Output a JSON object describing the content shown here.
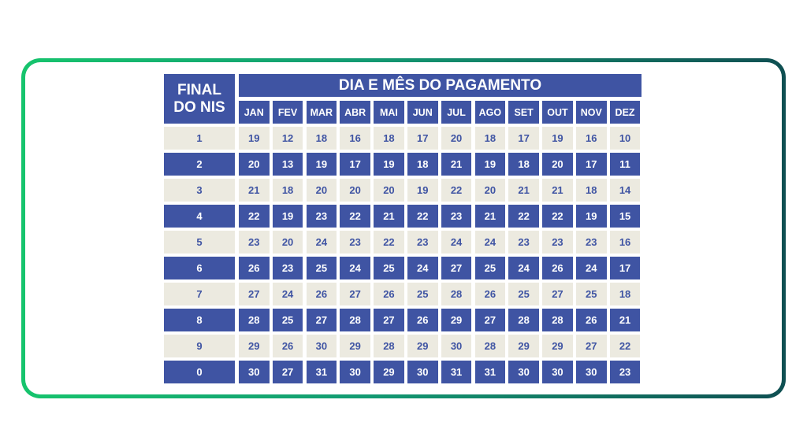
{
  "header": {
    "final_line1": "FINAL",
    "final_line2": "DO NIS",
    "title": "DIA E MÊS DO PAGAMENTO"
  },
  "months": [
    "JAN",
    "FEV",
    "MAR",
    "ABR",
    "MAI",
    "JUN",
    "JUL",
    "AGO",
    "SET",
    "OUT",
    "NOV",
    "DEZ"
  ],
  "rows": [
    {
      "nis": "1",
      "days": [
        "19",
        "12",
        "18",
        "16",
        "18",
        "17",
        "20",
        "18",
        "17",
        "19",
        "16",
        "10"
      ]
    },
    {
      "nis": "2",
      "days": [
        "20",
        "13",
        "19",
        "17",
        "19",
        "18",
        "21",
        "19",
        "18",
        "20",
        "17",
        "11"
      ]
    },
    {
      "nis": "3",
      "days": [
        "21",
        "18",
        "20",
        "20",
        "20",
        "19",
        "22",
        "20",
        "21",
        "21",
        "18",
        "14"
      ]
    },
    {
      "nis": "4",
      "days": [
        "22",
        "19",
        "23",
        "22",
        "21",
        "22",
        "23",
        "21",
        "22",
        "22",
        "19",
        "15"
      ]
    },
    {
      "nis": "5",
      "days": [
        "23",
        "20",
        "24",
        "23",
        "22",
        "23",
        "24",
        "24",
        "23",
        "23",
        "23",
        "16"
      ]
    },
    {
      "nis": "6",
      "days": [
        "26",
        "23",
        "25",
        "24",
        "25",
        "24",
        "27",
        "25",
        "24",
        "26",
        "24",
        "17"
      ]
    },
    {
      "nis": "7",
      "days": [
        "27",
        "24",
        "26",
        "27",
        "26",
        "25",
        "28",
        "26",
        "25",
        "27",
        "25",
        "18"
      ]
    },
    {
      "nis": "8",
      "days": [
        "28",
        "25",
        "27",
        "28",
        "27",
        "26",
        "29",
        "27",
        "28",
        "28",
        "26",
        "21"
      ]
    },
    {
      "nis": "9",
      "days": [
        "29",
        "26",
        "30",
        "29",
        "28",
        "29",
        "30",
        "28",
        "29",
        "29",
        "27",
        "22"
      ]
    },
    {
      "nis": "0",
      "days": [
        "30",
        "27",
        "31",
        "30",
        "29",
        "30",
        "31",
        "31",
        "30",
        "30",
        "30",
        "23"
      ]
    }
  ],
  "colors": {
    "blue": "#3f54a3",
    "beige": "#eceae0",
    "frame_start": "#16c46d",
    "frame_end": "#0f4f52"
  }
}
